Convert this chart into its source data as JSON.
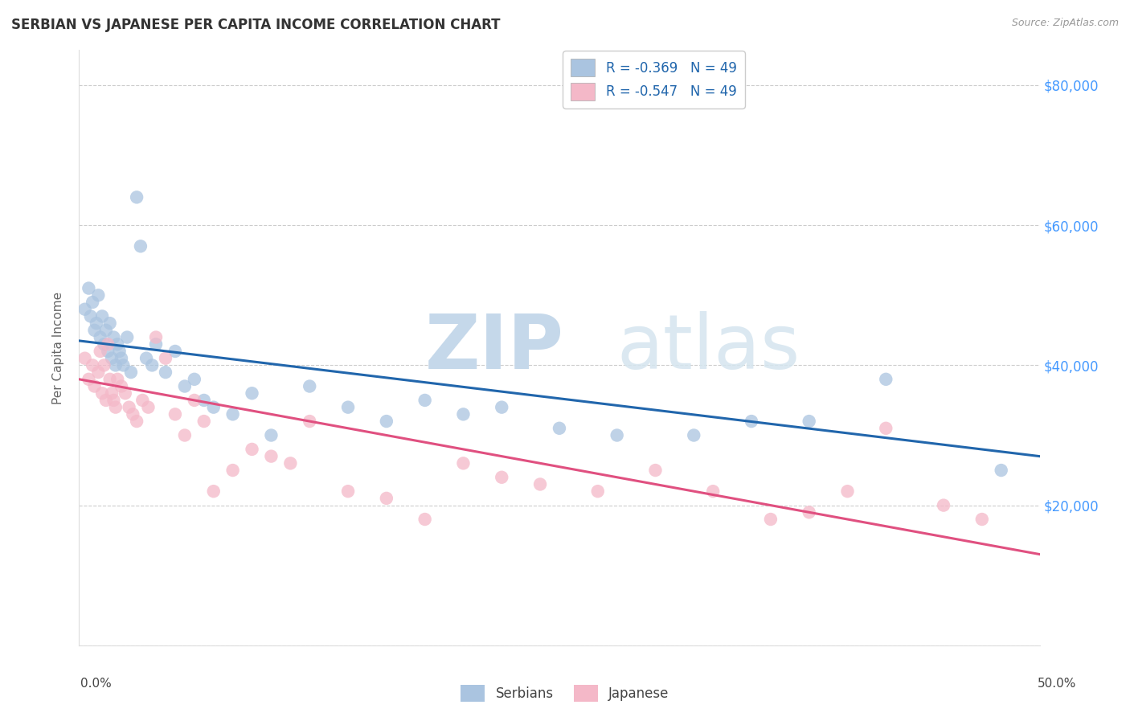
{
  "title": "SERBIAN VS JAPANESE PER CAPITA INCOME CORRELATION CHART",
  "source": "Source: ZipAtlas.com",
  "ylabel": "Per Capita Income",
  "xmin": 0.0,
  "xmax": 0.5,
  "ymin": 0,
  "ymax": 85000,
  "yticks": [
    0,
    20000,
    40000,
    60000,
    80000
  ],
  "ytick_labels": [
    "",
    "$20,000",
    "$40,000",
    "$60,000",
    "$80,000"
  ],
  "xticks": [
    0.0,
    0.1,
    0.2,
    0.3,
    0.4,
    0.5
  ],
  "legend_r1": "R = -0.369   N = 49",
  "legend_r2": "R = -0.547   N = 49",
  "legend_label1": "Serbians",
  "legend_label2": "Japanese",
  "blue_scatter_color": "#aac4e0",
  "pink_scatter_color": "#f4b8c8",
  "blue_line_color": "#2166ac",
  "pink_line_color": "#e05080",
  "title_color": "#333333",
  "right_tick_color": "#4499ff",
  "grid_color": "#cccccc",
  "serbian_x": [
    0.003,
    0.005,
    0.006,
    0.007,
    0.008,
    0.009,
    0.01,
    0.011,
    0.012,
    0.013,
    0.014,
    0.015,
    0.016,
    0.017,
    0.018,
    0.019,
    0.02,
    0.021,
    0.022,
    0.023,
    0.025,
    0.027,
    0.03,
    0.032,
    0.035,
    0.038,
    0.04,
    0.045,
    0.05,
    0.055,
    0.06,
    0.065,
    0.07,
    0.08,
    0.09,
    0.1,
    0.12,
    0.14,
    0.16,
    0.18,
    0.2,
    0.22,
    0.25,
    0.28,
    0.32,
    0.35,
    0.38,
    0.42,
    0.48
  ],
  "serbian_y": [
    48000,
    51000,
    47000,
    49000,
    45000,
    46000,
    50000,
    44000,
    47000,
    43000,
    45000,
    42000,
    46000,
    41000,
    44000,
    40000,
    43000,
    42000,
    41000,
    40000,
    44000,
    39000,
    64000,
    57000,
    41000,
    40000,
    43000,
    39000,
    42000,
    37000,
    38000,
    35000,
    34000,
    33000,
    36000,
    30000,
    37000,
    34000,
    32000,
    35000,
    33000,
    34000,
    31000,
    30000,
    30000,
    32000,
    32000,
    38000,
    25000
  ],
  "japanese_x": [
    0.003,
    0.005,
    0.007,
    0.008,
    0.01,
    0.011,
    0.012,
    0.013,
    0.014,
    0.015,
    0.016,
    0.017,
    0.018,
    0.019,
    0.02,
    0.022,
    0.024,
    0.026,
    0.028,
    0.03,
    0.033,
    0.036,
    0.04,
    0.045,
    0.05,
    0.055,
    0.06,
    0.065,
    0.07,
    0.08,
    0.09,
    0.1,
    0.11,
    0.12,
    0.14,
    0.16,
    0.18,
    0.2,
    0.22,
    0.24,
    0.27,
    0.3,
    0.33,
    0.36,
    0.38,
    0.4,
    0.42,
    0.45,
    0.47
  ],
  "japanese_y": [
    41000,
    38000,
    40000,
    37000,
    39000,
    42000,
    36000,
    40000,
    35000,
    43000,
    38000,
    36000,
    35000,
    34000,
    38000,
    37000,
    36000,
    34000,
    33000,
    32000,
    35000,
    34000,
    44000,
    41000,
    33000,
    30000,
    35000,
    32000,
    22000,
    25000,
    28000,
    27000,
    26000,
    32000,
    22000,
    21000,
    18000,
    26000,
    24000,
    23000,
    22000,
    25000,
    22000,
    18000,
    19000,
    22000,
    31000,
    20000,
    18000
  ]
}
